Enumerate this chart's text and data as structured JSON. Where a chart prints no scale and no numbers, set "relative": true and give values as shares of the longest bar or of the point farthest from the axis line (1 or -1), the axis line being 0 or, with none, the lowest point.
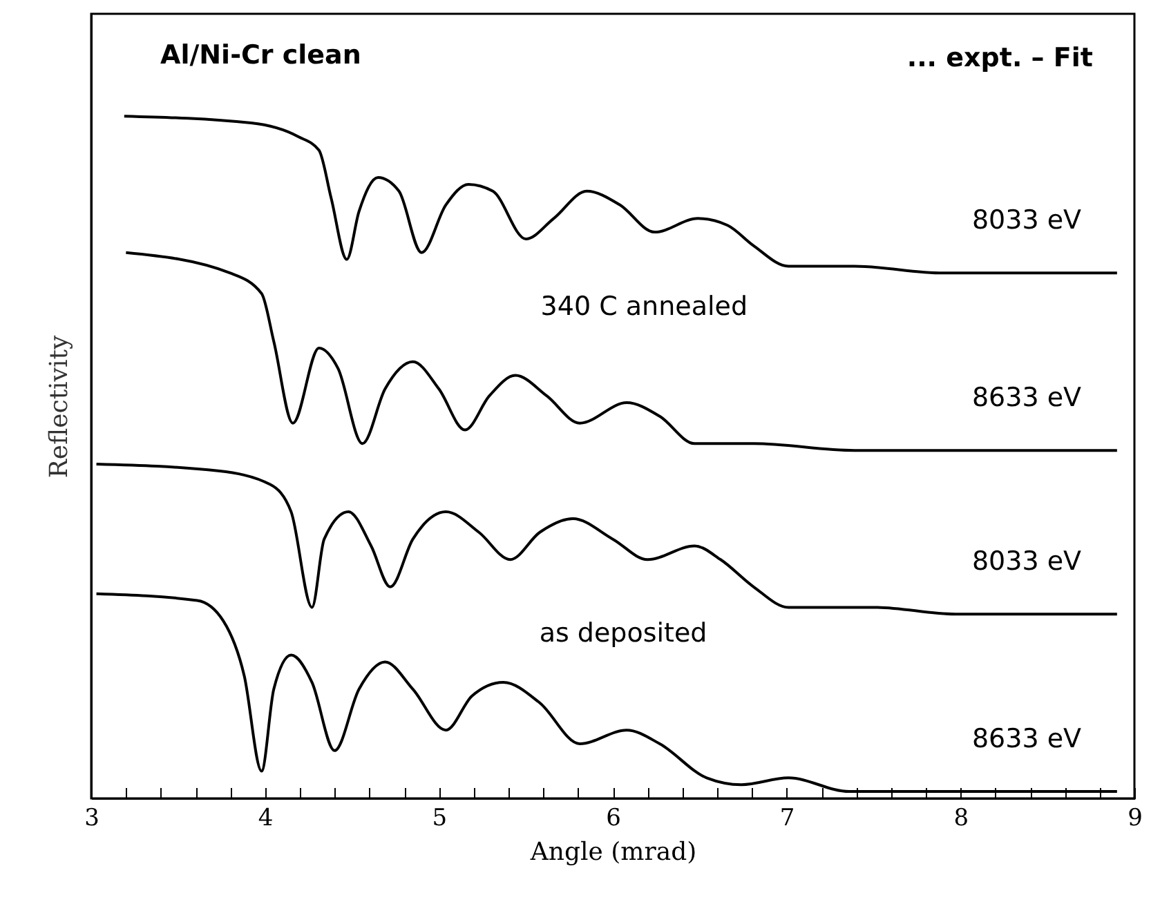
{
  "chart_data": {
    "type": "line",
    "title": "Al/Ni-Cr clean",
    "xlabel": "Angle (mrad)",
    "ylabel": "Reflectivity",
    "relative": true,
    "xlim": [
      3,
      9
    ],
    "xticks": [
      3,
      {
        "value": 3.2,
        "label": null
      },
      {
        "value": 3.4,
        "label": null
      },
      {
        "value": 3.6,
        "label": null
      },
      {
        "value": 3.8,
        "label": null
      },
      4,
      {
        "value": 4.2,
        "label": null
      },
      {
        "value": 4.4,
        "label": null
      },
      {
        "value": 4.6,
        "label": null
      },
      {
        "value": 4.8,
        "label": null
      },
      5,
      {
        "value": 5.2,
        "label": null
      },
      {
        "value": 5.4,
        "label": null
      },
      {
        "value": 5.6,
        "label": null
      },
      {
        "value": 5.8,
        "label": null
      },
      6,
      {
        "value": 6.2,
        "label": null
      },
      {
        "value": 6.4,
        "label": null
      },
      {
        "value": 6.6,
        "label": null
      },
      {
        "value": 6.8,
        "label": null
      },
      7,
      {
        "value": 7.2,
        "label": null
      },
      {
        "value": 7.4,
        "label": null
      },
      {
        "value": 7.6,
        "label": null
      },
      {
        "value": 7.8,
        "label": null
      },
      8,
      {
        "value": 8.2,
        "label": null
      },
      {
        "value": 8.4,
        "label": null
      },
      {
        "value": 8.6,
        "label": null
      },
      {
        "value": 8.8,
        "label": null
      },
      9
    ],
    "marker": "none",
    "line_style": "solid",
    "series": [
      {
        "name": "8033 eV",
        "color": "#000000",
        "x": [
          3.19,
          3.92,
          4.19,
          4.31,
          4.38,
          4.47,
          4.54,
          4.65,
          4.77,
          4.9,
          5.04,
          5.17,
          5.31,
          5.5,
          5.66,
          5.85,
          6.04,
          6.24,
          6.49,
          6.66,
          6.81,
          7.01,
          7.39,
          7.9,
          8.9
        ],
        "values": [
          1.0,
          0.99,
          0.97,
          0.95,
          0.88,
          0.79,
          0.86,
          0.91,
          0.89,
          0.8,
          0.87,
          0.9,
          0.89,
          0.82,
          0.85,
          0.89,
          0.87,
          0.83,
          0.85,
          0.84,
          0.81,
          0.78,
          0.78,
          0.77,
          0.77
        ]
      },
      {
        "name": "8633 eV",
        "color": "#000000",
        "x": [
          3.2,
          3.8,
          3.98,
          4.05,
          4.16,
          4.31,
          4.42,
          4.56,
          4.69,
          4.85,
          5.0,
          5.15,
          5.29,
          5.44,
          5.62,
          5.81,
          6.08,
          6.27,
          6.47,
          6.81,
          7.39,
          8.9
        ],
        "values": [
          0.8,
          0.77,
          0.74,
          0.67,
          0.55,
          0.66,
          0.63,
          0.52,
          0.6,
          0.64,
          0.6,
          0.54,
          0.59,
          0.62,
          0.59,
          0.55,
          0.58,
          0.56,
          0.52,
          0.52,
          0.51,
          0.51
        ]
      },
      {
        "name": "8033 eV",
        "color": "#000000",
        "x": [
          3.03,
          3.73,
          4.03,
          4.15,
          4.27,
          4.34,
          4.48,
          4.61,
          4.72,
          4.85,
          5.04,
          5.23,
          5.41,
          5.58,
          5.77,
          6.0,
          6.2,
          6.47,
          6.62,
          6.81,
          7.01,
          7.51,
          7.97,
          8.9
        ],
        "values": [
          0.49,
          0.48,
          0.46,
          0.42,
          0.28,
          0.38,
          0.42,
          0.37,
          0.31,
          0.38,
          0.42,
          0.39,
          0.35,
          0.39,
          0.41,
          0.38,
          0.35,
          0.37,
          0.35,
          0.31,
          0.28,
          0.28,
          0.27,
          0.27
        ]
      },
      {
        "name": "8633 eV",
        "color": "#000000",
        "x": [
          3.03,
          3.61,
          3.76,
          3.88,
          3.98,
          4.05,
          4.15,
          4.27,
          4.4,
          4.54,
          4.69,
          4.85,
          5.04,
          5.19,
          5.37,
          5.58,
          5.81,
          6.08,
          6.27,
          6.54,
          6.74,
          7.01,
          7.36,
          7.97,
          8.9
        ],
        "values": [
          0.3,
          0.29,
          0.26,
          0.18,
          0.04,
          0.16,
          0.21,
          0.17,
          0.07,
          0.16,
          0.2,
          0.16,
          0.1,
          0.15,
          0.17,
          0.14,
          0.08,
          0.1,
          0.08,
          0.03,
          0.02,
          0.03,
          0.01,
          0.01,
          0.01
        ]
      }
    ],
    "annotations": [
      "... expt.   – Fit",
      "340 C annealed",
      "as deposited"
    ]
  }
}
